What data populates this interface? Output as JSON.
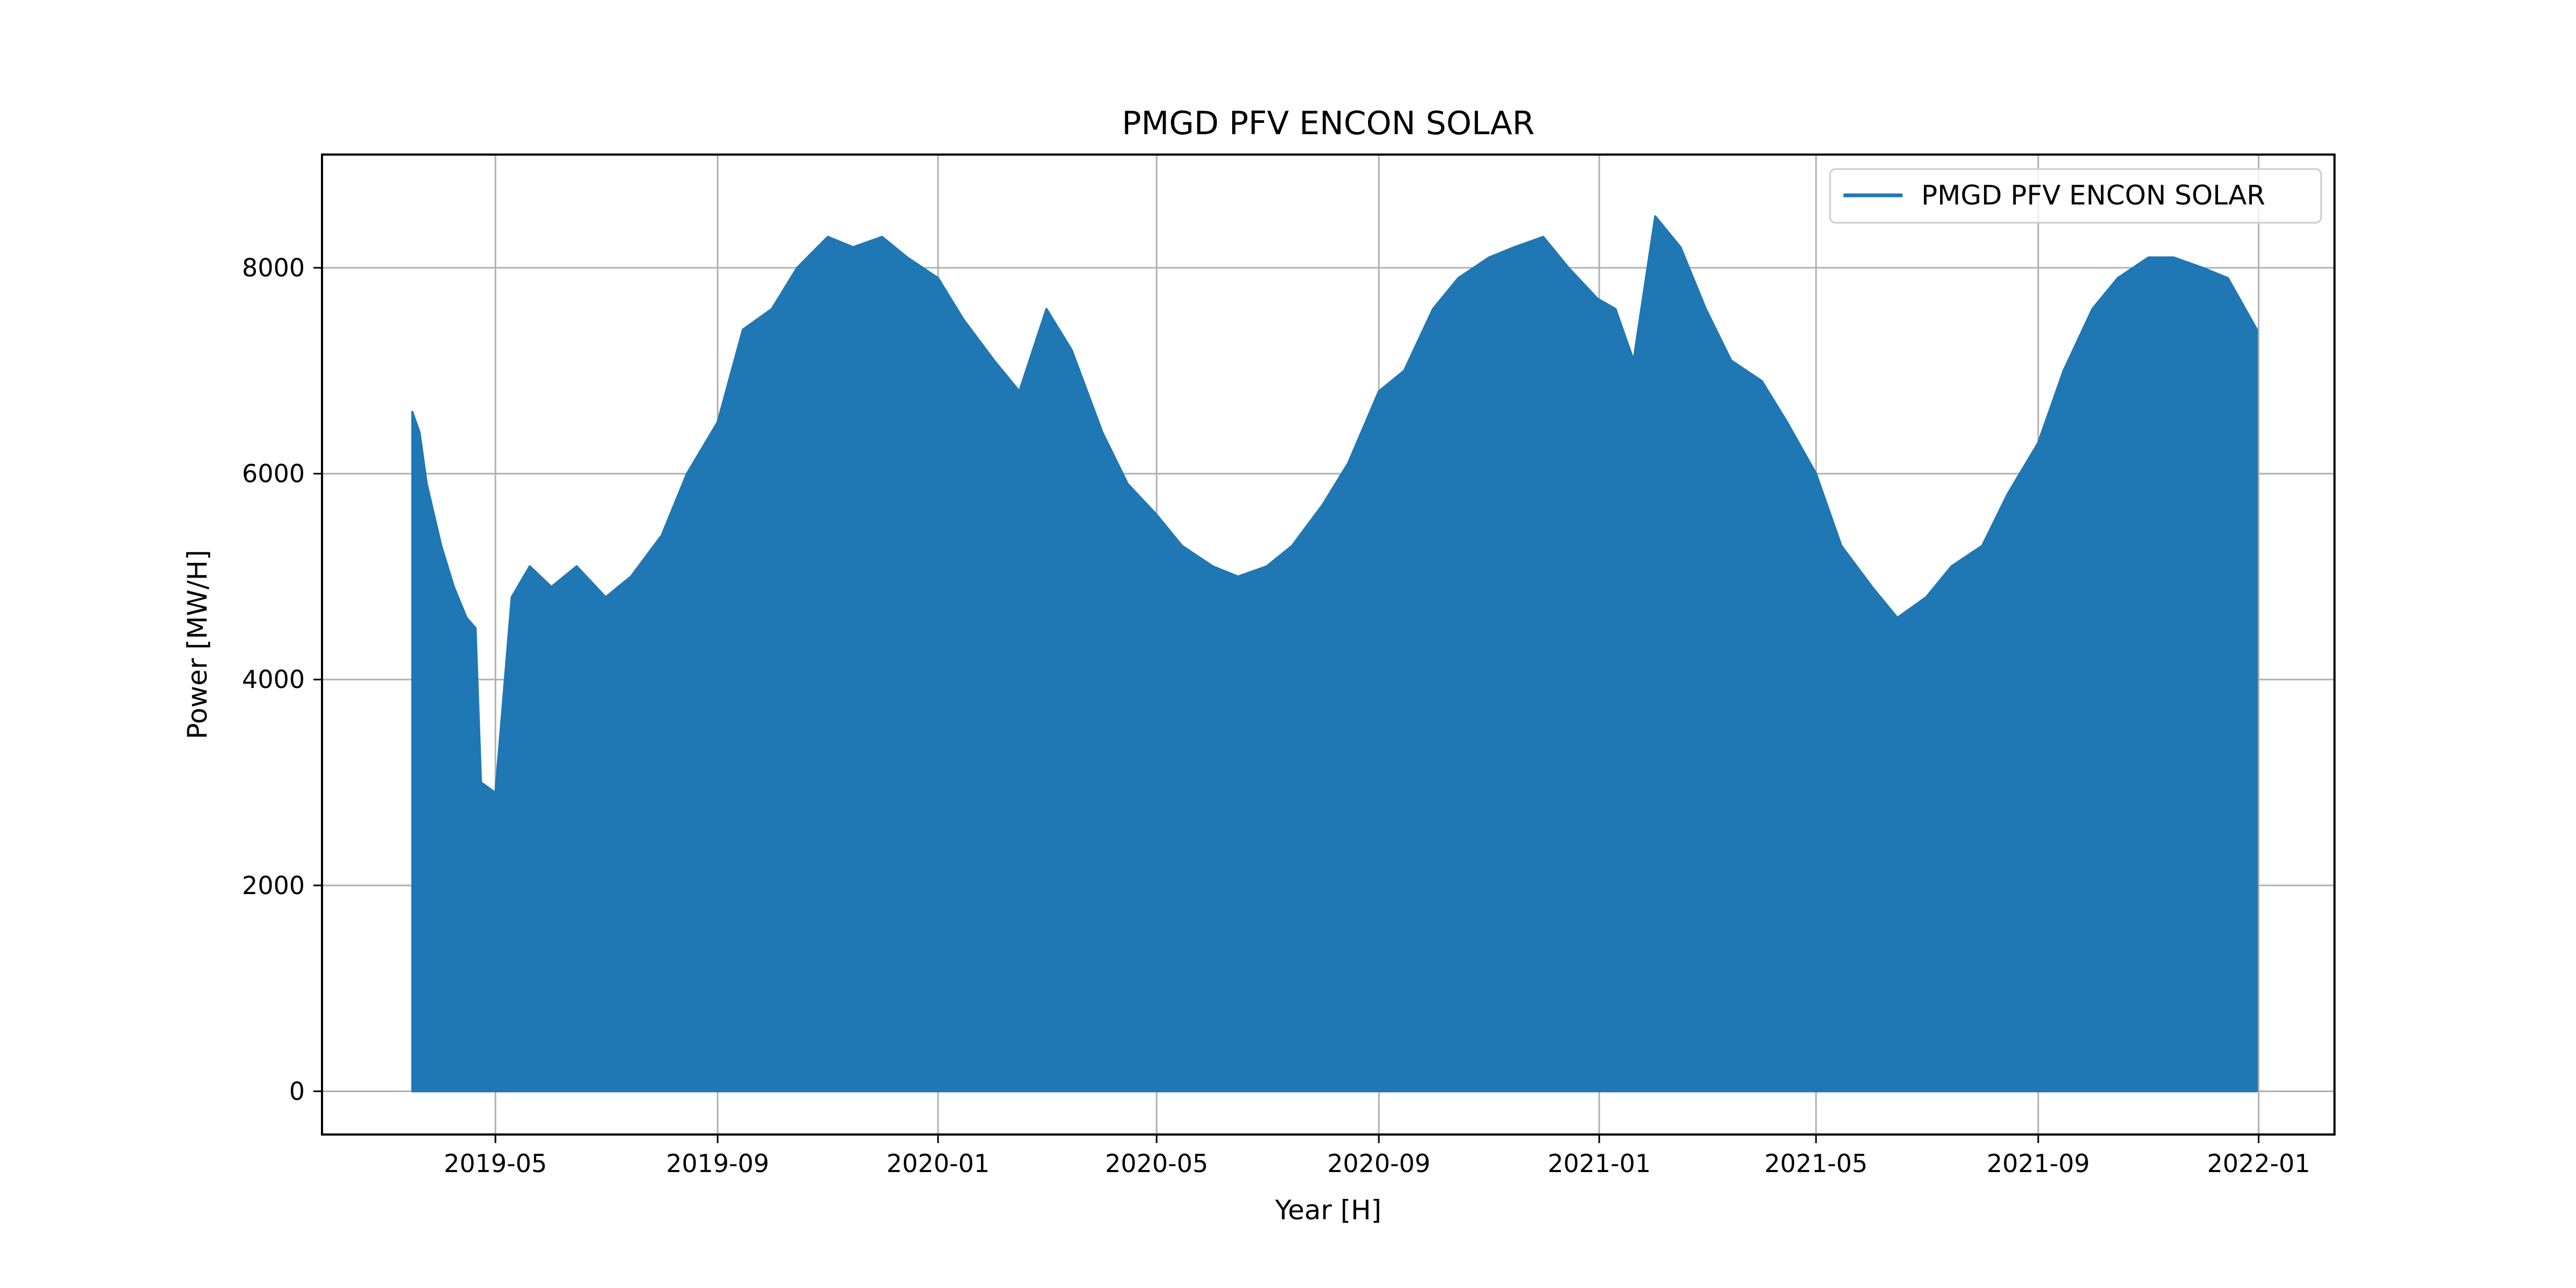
{
  "chart_data": {
    "type": "area",
    "title": "PMGD PFV ENCON SOLAR",
    "xlabel": "Year [H]",
    "ylabel": "Power [MW/H]",
    "xlim": [
      "2019-01-25",
      "2022-02-12"
    ],
    "ylim": [
      -420,
      9100
    ],
    "grid": true,
    "legend_position": "top-right",
    "x_ticks": [
      "2019-05",
      "2019-09",
      "2020-01",
      "2020-05",
      "2020-09",
      "2021-01",
      "2021-05",
      "2021-09",
      "2022-01"
    ],
    "x_tick_dates": [
      "2019-05-01",
      "2019-09-01",
      "2020-01-01",
      "2020-05-01",
      "2020-09-01",
      "2021-01-01",
      "2021-05-01",
      "2021-09-01",
      "2022-01-01"
    ],
    "y_ticks": [
      0,
      2000,
      4000,
      6000,
      8000
    ],
    "y_tick_labels": [
      "0",
      "2000",
      "4000",
      "6000",
      "8000"
    ],
    "series": [
      {
        "name": "PMGD PFV ENCON SOLAR",
        "color": "#1f77b4",
        "x": [
          "2019-03-16",
          "2019-03-20",
          "2019-03-24",
          "2019-04-01",
          "2019-04-08",
          "2019-04-15",
          "2019-04-20",
          "2019-04-23",
          "2019-05-01",
          "2019-05-10",
          "2019-05-20",
          "2019-06-01",
          "2019-06-15",
          "2019-07-01",
          "2019-07-15",
          "2019-08-01",
          "2019-08-15",
          "2019-09-01",
          "2019-09-15",
          "2019-10-01",
          "2019-10-15",
          "2019-11-01",
          "2019-11-15",
          "2019-12-01",
          "2019-12-15",
          "2020-01-01",
          "2020-01-15",
          "2020-02-01",
          "2020-02-15",
          "2020-03-01",
          "2020-03-15",
          "2020-04-01",
          "2020-04-15",
          "2020-05-01",
          "2020-05-15",
          "2020-06-01",
          "2020-06-15",
          "2020-07-01",
          "2020-07-15",
          "2020-08-01",
          "2020-08-15",
          "2020-09-01",
          "2020-09-15",
          "2020-10-01",
          "2020-10-15",
          "2020-11-01",
          "2020-11-15",
          "2020-12-01",
          "2020-12-15",
          "2020-12-31",
          "2021-01-10",
          "2021-01-20",
          "2021-02-01",
          "2021-02-15",
          "2021-03-01",
          "2021-03-15",
          "2021-04-01",
          "2021-04-15",
          "2021-05-01",
          "2021-05-15",
          "2021-06-01",
          "2021-06-15",
          "2021-07-01",
          "2021-07-15",
          "2021-08-01",
          "2021-08-15",
          "2021-09-01",
          "2021-09-15",
          "2021-10-01",
          "2021-10-15",
          "2021-11-01",
          "2021-11-15",
          "2021-12-01",
          "2021-12-15",
          "2021-12-31"
        ],
        "y": [
          6600,
          6400,
          5900,
          5300,
          4900,
          4600,
          4500,
          3000,
          2900,
          4800,
          5100,
          4900,
          5100,
          4800,
          5000,
          5400,
          6000,
          6500,
          7400,
          7600,
          8000,
          8300,
          8200,
          8300,
          8100,
          7900,
          7500,
          7100,
          6800,
          7600,
          7200,
          6400,
          5900,
          5600,
          5300,
          5100,
          5000,
          5100,
          5300,
          5700,
          6100,
          6800,
          7000,
          7600,
          7900,
          8100,
          8200,
          8300,
          8000,
          7700,
          7600,
          7100,
          8500,
          8200,
          7600,
          7100,
          6900,
          6500,
          6000,
          5300,
          4900,
          4600,
          4800,
          5100,
          5300,
          5800,
          6300,
          7000,
          7600,
          7900,
          8100,
          8100,
          8000,
          7900,
          7400
        ]
      }
    ]
  }
}
